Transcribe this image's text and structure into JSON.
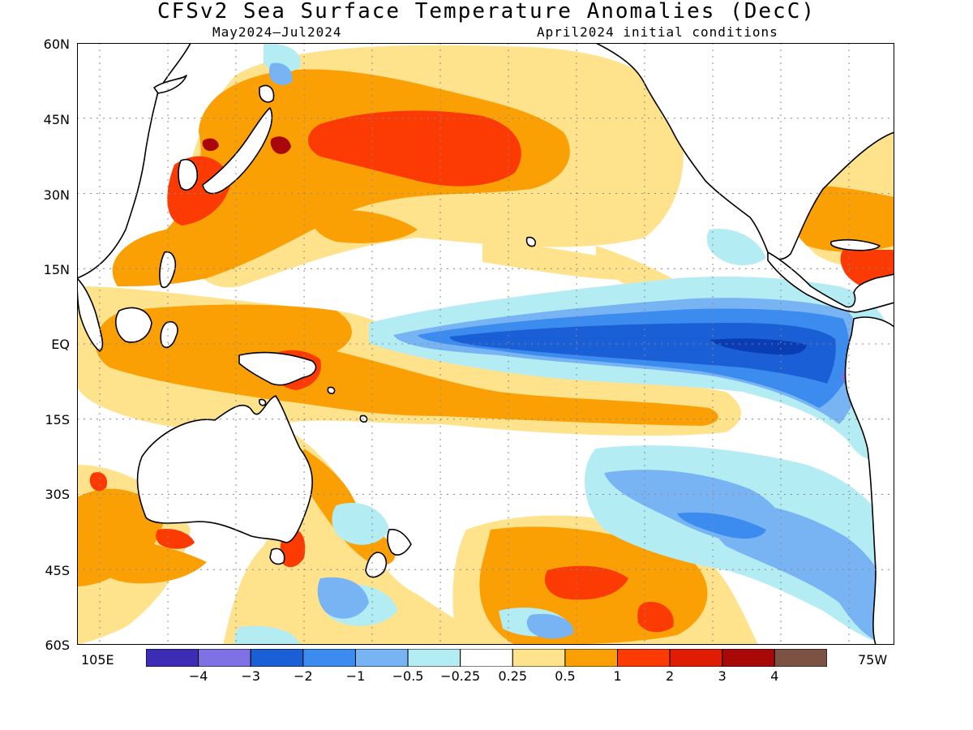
{
  "title": "CFSv2 Sea Surface Temperature Anomalies (DecC)",
  "subtitle_left": "May2024—Jul2024",
  "subtitle_right": "April2024 initial conditions",
  "lat_labels": [
    "60N",
    "45N",
    "30N",
    "15N",
    "EQ",
    "15S",
    "30S",
    "45S",
    "60S"
  ],
  "lon_left": "105E",
  "lon_right": "75W",
  "legend": {
    "colors": [
      "#3d2db4",
      "#8070e6",
      "#1a5fd6",
      "#3c8cf0",
      "#78b4f4",
      "#b4ecf4",
      "#ffffff",
      "#fee28c",
      "#fba004",
      "#fb3a04",
      "#e01c04",
      "#a80808",
      "#7c5244"
    ],
    "tick_labels": [
      "−4",
      "−3",
      "−2",
      "−1",
      "−0.5",
      "−0.25",
      "0.25",
      "0.5",
      "1",
      "2",
      "3",
      "4"
    ]
  }
}
